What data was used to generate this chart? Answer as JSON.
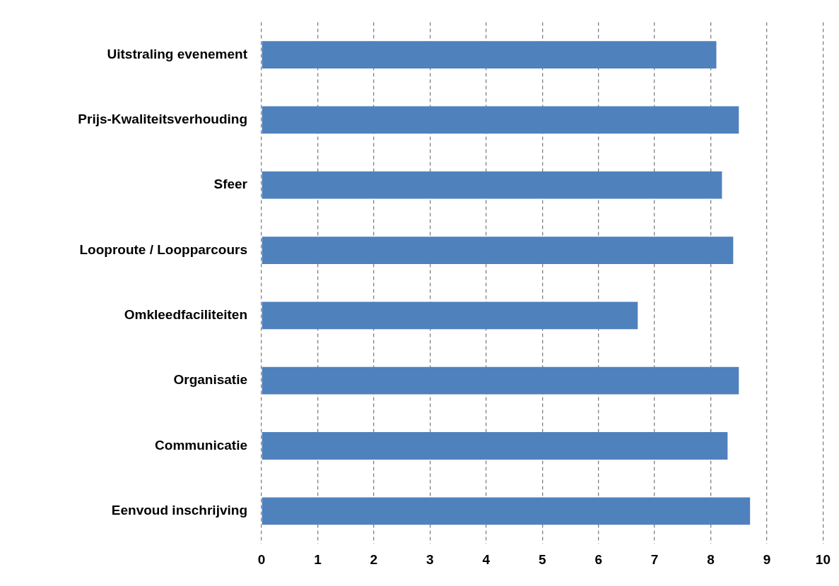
{
  "chart_data": {
    "type": "bar",
    "orientation": "horizontal",
    "categories": [
      "Uitstraling evenement",
      "Prijs-Kwaliteitsverhouding",
      "Sfeer",
      "Looproute / Loopparcours",
      "Omkleedfaciliteiten",
      "Organisatie",
      "Communicatie",
      "Eenvoud inschrijving"
    ],
    "values": [
      8.1,
      8.5,
      8.2,
      8.4,
      6.7,
      8.5,
      8.3,
      8.7
    ],
    "color": "#4f81bd",
    "xlim": [
      0,
      10
    ],
    "xticks": [
      0,
      1,
      2,
      3,
      4,
      5,
      6,
      7,
      8,
      9,
      10
    ],
    "grid": "x",
    "legend": false
  }
}
